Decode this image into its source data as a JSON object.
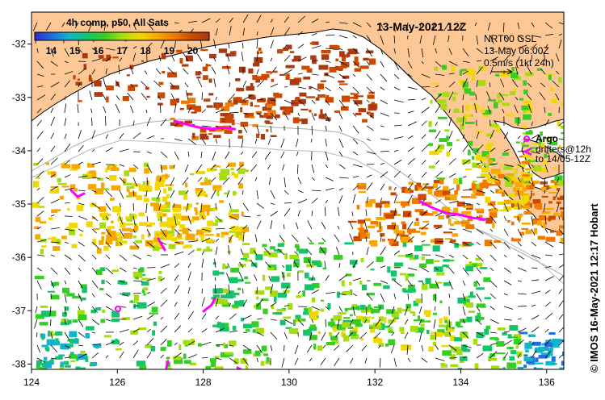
{
  "title": "13-May-2021 12Z",
  "colorbar": {
    "title": "4h comp, p50, All Sats",
    "ticks": [
      "14",
      "15",
      "16",
      "17",
      "18",
      "19",
      "20"
    ],
    "min": 13.3,
    "max": 20.7,
    "colors": [
      "#2a2ad0",
      "#1f6fe0",
      "#12b4cc",
      "#13c46a",
      "#34cf20",
      "#a5dd10",
      "#f0d800",
      "#f6a800",
      "#f07a00",
      "#cc4a00",
      "#aa3a10"
    ]
  },
  "current_info": {
    "line1": "NRT00 GSL",
    "line2": "13-May 06:00Z",
    "line3": "0.5m/s (1kt 24h)"
  },
  "legend": {
    "argo_label": "Argo",
    "drifters_label_1": "drifters@12h",
    "drifters_label_2": "to 14/05-12Z",
    "argo_color": "#ff00ff",
    "drifter_color": "#ff00ff"
  },
  "credit": "© IMOS 16-May-2021 12:17 Hobart",
  "axes": {
    "x_ticks": [
      "124",
      "126",
      "128",
      "130",
      "132",
      "134",
      "136"
    ],
    "y_ticks": [
      "-32",
      "-33",
      "-34",
      "-35",
      "-36",
      "-37",
      "-38"
    ],
    "x_range": [
      124,
      136.4
    ],
    "y_range": [
      -38.1,
      -31.4
    ]
  },
  "colors": {
    "land": "#fdc896",
    "ocean": "#ffffff",
    "coast": "#000000",
    "shelf": "#aaaaaa"
  }
}
